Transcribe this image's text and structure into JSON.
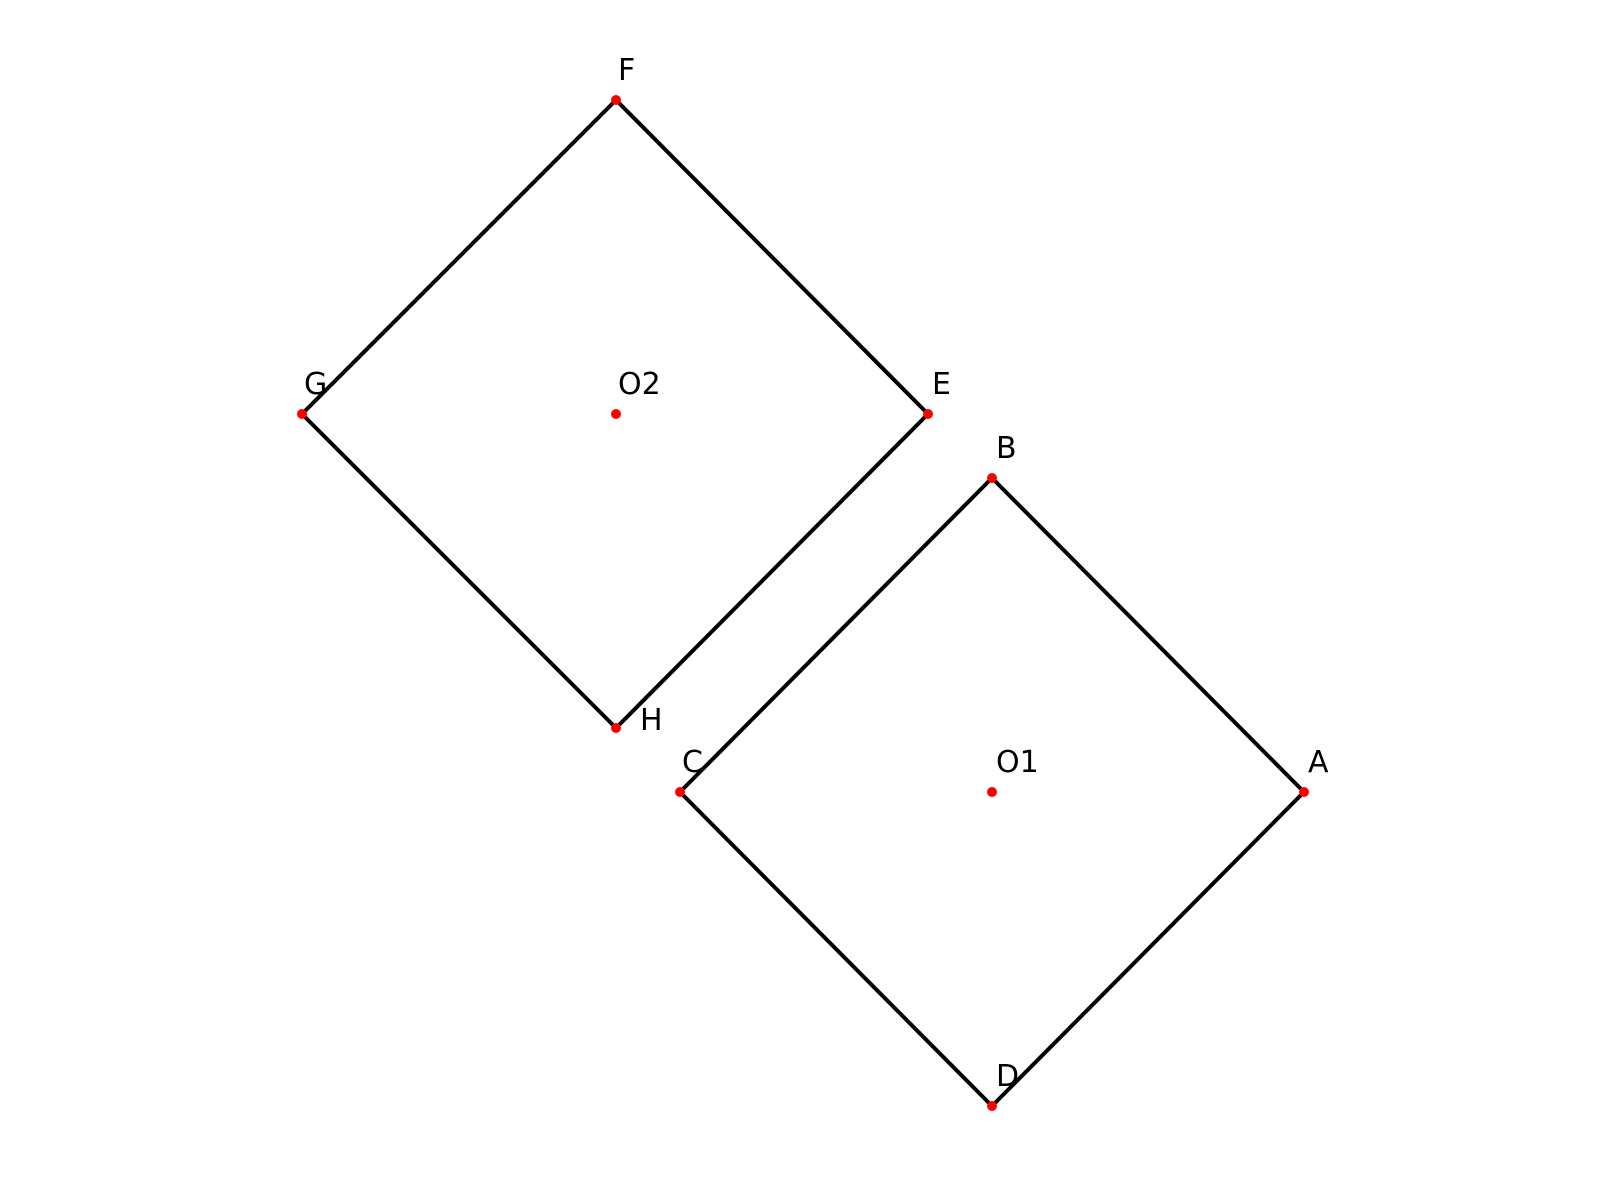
{
  "diagram": {
    "point_color": "#ff0000",
    "line_color": "#000000",
    "labels": {
      "A": "A",
      "B": "B",
      "C": "C",
      "D": "D",
      "E": "E",
      "F": "F",
      "G": "G",
      "H": "H",
      "O1": "O1",
      "O2": "O2"
    },
    "squares": [
      {
        "name": "square-ABCD",
        "vertices": [
          "A",
          "B",
          "C",
          "D"
        ],
        "center": "O1"
      },
      {
        "name": "square-EFGH",
        "vertices": [
          "E",
          "F",
          "G",
          "H"
        ],
        "center": "O2"
      }
    ]
  }
}
